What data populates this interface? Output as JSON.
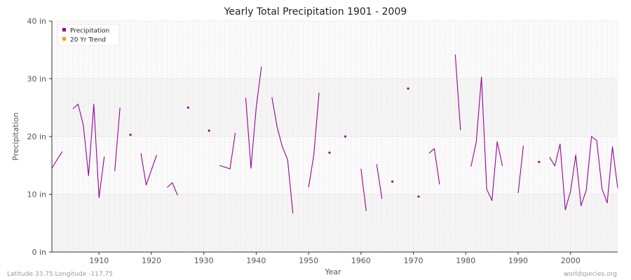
{
  "chart_data": {
    "type": "line",
    "title": "Yearly Total Precipitation 1901 - 2009",
    "xlabel": "Year",
    "ylabel": "Precipitation",
    "xlim": [
      1901,
      2009
    ],
    "ylim": [
      0,
      40
    ],
    "y_ticks": [
      {
        "value": 0,
        "label": "0 in"
      },
      {
        "value": 10,
        "label": "10 in"
      },
      {
        "value": 20,
        "label": "20 in"
      },
      {
        "value": 30,
        "label": "30 in"
      },
      {
        "value": 40,
        "label": "40 in"
      }
    ],
    "x_ticks": [
      1910,
      1920,
      1930,
      1940,
      1950,
      1960,
      1970,
      1980,
      1990,
      2000
    ],
    "grid": true,
    "legend_position": "top-left",
    "series": [
      {
        "name": "Precipitation",
        "color": "#990099",
        "points": [
          [
            1901,
            14.5
          ],
          [
            1902,
            16.0
          ],
          [
            1903,
            17.4
          ],
          [
            1904,
            null
          ],
          [
            1905,
            24.8
          ],
          [
            1906,
            25.6
          ],
          [
            1907,
            22.0
          ],
          [
            1908,
            13.2
          ],
          [
            1909,
            25.6
          ],
          [
            1910,
            9.4
          ],
          [
            1911,
            16.5
          ],
          [
            1912,
            null
          ],
          [
            1913,
            14.0
          ],
          [
            1914,
            25.0
          ],
          [
            1915,
            null
          ],
          [
            1916,
            20.3
          ],
          [
            1917,
            null
          ],
          [
            1918,
            17.1
          ],
          [
            1919,
            11.6
          ],
          [
            1920,
            14.2
          ],
          [
            1921,
            16.8
          ],
          [
            1922,
            null
          ],
          [
            1923,
            11.2
          ],
          [
            1924,
            12.0
          ],
          [
            1925,
            9.8
          ],
          [
            1926,
            null
          ],
          [
            1927,
            25.0
          ],
          [
            1928,
            null
          ],
          [
            1929,
            null
          ],
          [
            1930,
            null
          ],
          [
            1931,
            21.0
          ],
          [
            1932,
            null
          ],
          [
            1933,
            15.0
          ],
          [
            1934,
            14.7
          ],
          [
            1935,
            14.4
          ],
          [
            1936,
            20.6
          ],
          [
            1937,
            null
          ],
          [
            1938,
            26.7
          ],
          [
            1939,
            14.5
          ],
          [
            1940,
            25.0
          ],
          [
            1941,
            32.1
          ],
          [
            1942,
            null
          ],
          [
            1943,
            26.8
          ],
          [
            1944,
            21.6
          ],
          [
            1945,
            18.2
          ],
          [
            1946,
            16.0
          ],
          [
            1947,
            6.7
          ],
          [
            1948,
            null
          ],
          [
            1949,
            null
          ],
          [
            1950,
            11.2
          ],
          [
            1951,
            16.8
          ],
          [
            1952,
            27.6
          ],
          [
            1953,
            null
          ],
          [
            1954,
            17.2
          ],
          [
            1955,
            null
          ],
          [
            1956,
            null
          ],
          [
            1957,
            20.0
          ],
          [
            1958,
            null
          ],
          [
            1959,
            null
          ],
          [
            1960,
            14.4
          ],
          [
            1961,
            7.1
          ],
          [
            1962,
            null
          ],
          [
            1963,
            15.2
          ],
          [
            1964,
            9.2
          ],
          [
            1965,
            null
          ],
          [
            1966,
            12.2
          ],
          [
            1967,
            null
          ],
          [
            1968,
            null
          ],
          [
            1969,
            28.3
          ],
          [
            1970,
            null
          ],
          [
            1971,
            9.6
          ],
          [
            1972,
            null
          ],
          [
            1973,
            17.1
          ],
          [
            1974,
            17.9
          ],
          [
            1975,
            11.7
          ],
          [
            1976,
            null
          ],
          [
            1977,
            null
          ],
          [
            1978,
            34.2
          ],
          [
            1979,
            21.1
          ],
          [
            1980,
            null
          ],
          [
            1981,
            14.8
          ],
          [
            1982,
            19.0
          ],
          [
            1983,
            30.3
          ],
          [
            1984,
            10.9
          ],
          [
            1985,
            8.9
          ],
          [
            1986,
            19.1
          ],
          [
            1987,
            14.9
          ],
          [
            1988,
            null
          ],
          [
            1989,
            null
          ],
          [
            1990,
            10.2
          ],
          [
            1991,
            18.4
          ],
          [
            1992,
            null
          ],
          [
            1993,
            null
          ],
          [
            1994,
            15.6
          ],
          [
            1995,
            null
          ],
          [
            1996,
            16.4
          ],
          [
            1997,
            14.9
          ],
          [
            1998,
            18.7
          ],
          [
            1999,
            7.3
          ],
          [
            2000,
            10.5
          ],
          [
            2001,
            16.8
          ],
          [
            2002,
            8.0
          ],
          [
            2003,
            10.7
          ],
          [
            2004,
            20.0
          ],
          [
            2005,
            19.3
          ],
          [
            2006,
            11.0
          ],
          [
            2007,
            8.5
          ],
          [
            2008,
            18.2
          ],
          [
            2009,
            11.1
          ]
        ]
      },
      {
        "name": "20 Yr Trend",
        "color": "#ff9900",
        "points": []
      }
    ]
  },
  "footer": {
    "location": "Latitude 33.75 Longitude -117.75",
    "source": "worldspecies.org"
  }
}
